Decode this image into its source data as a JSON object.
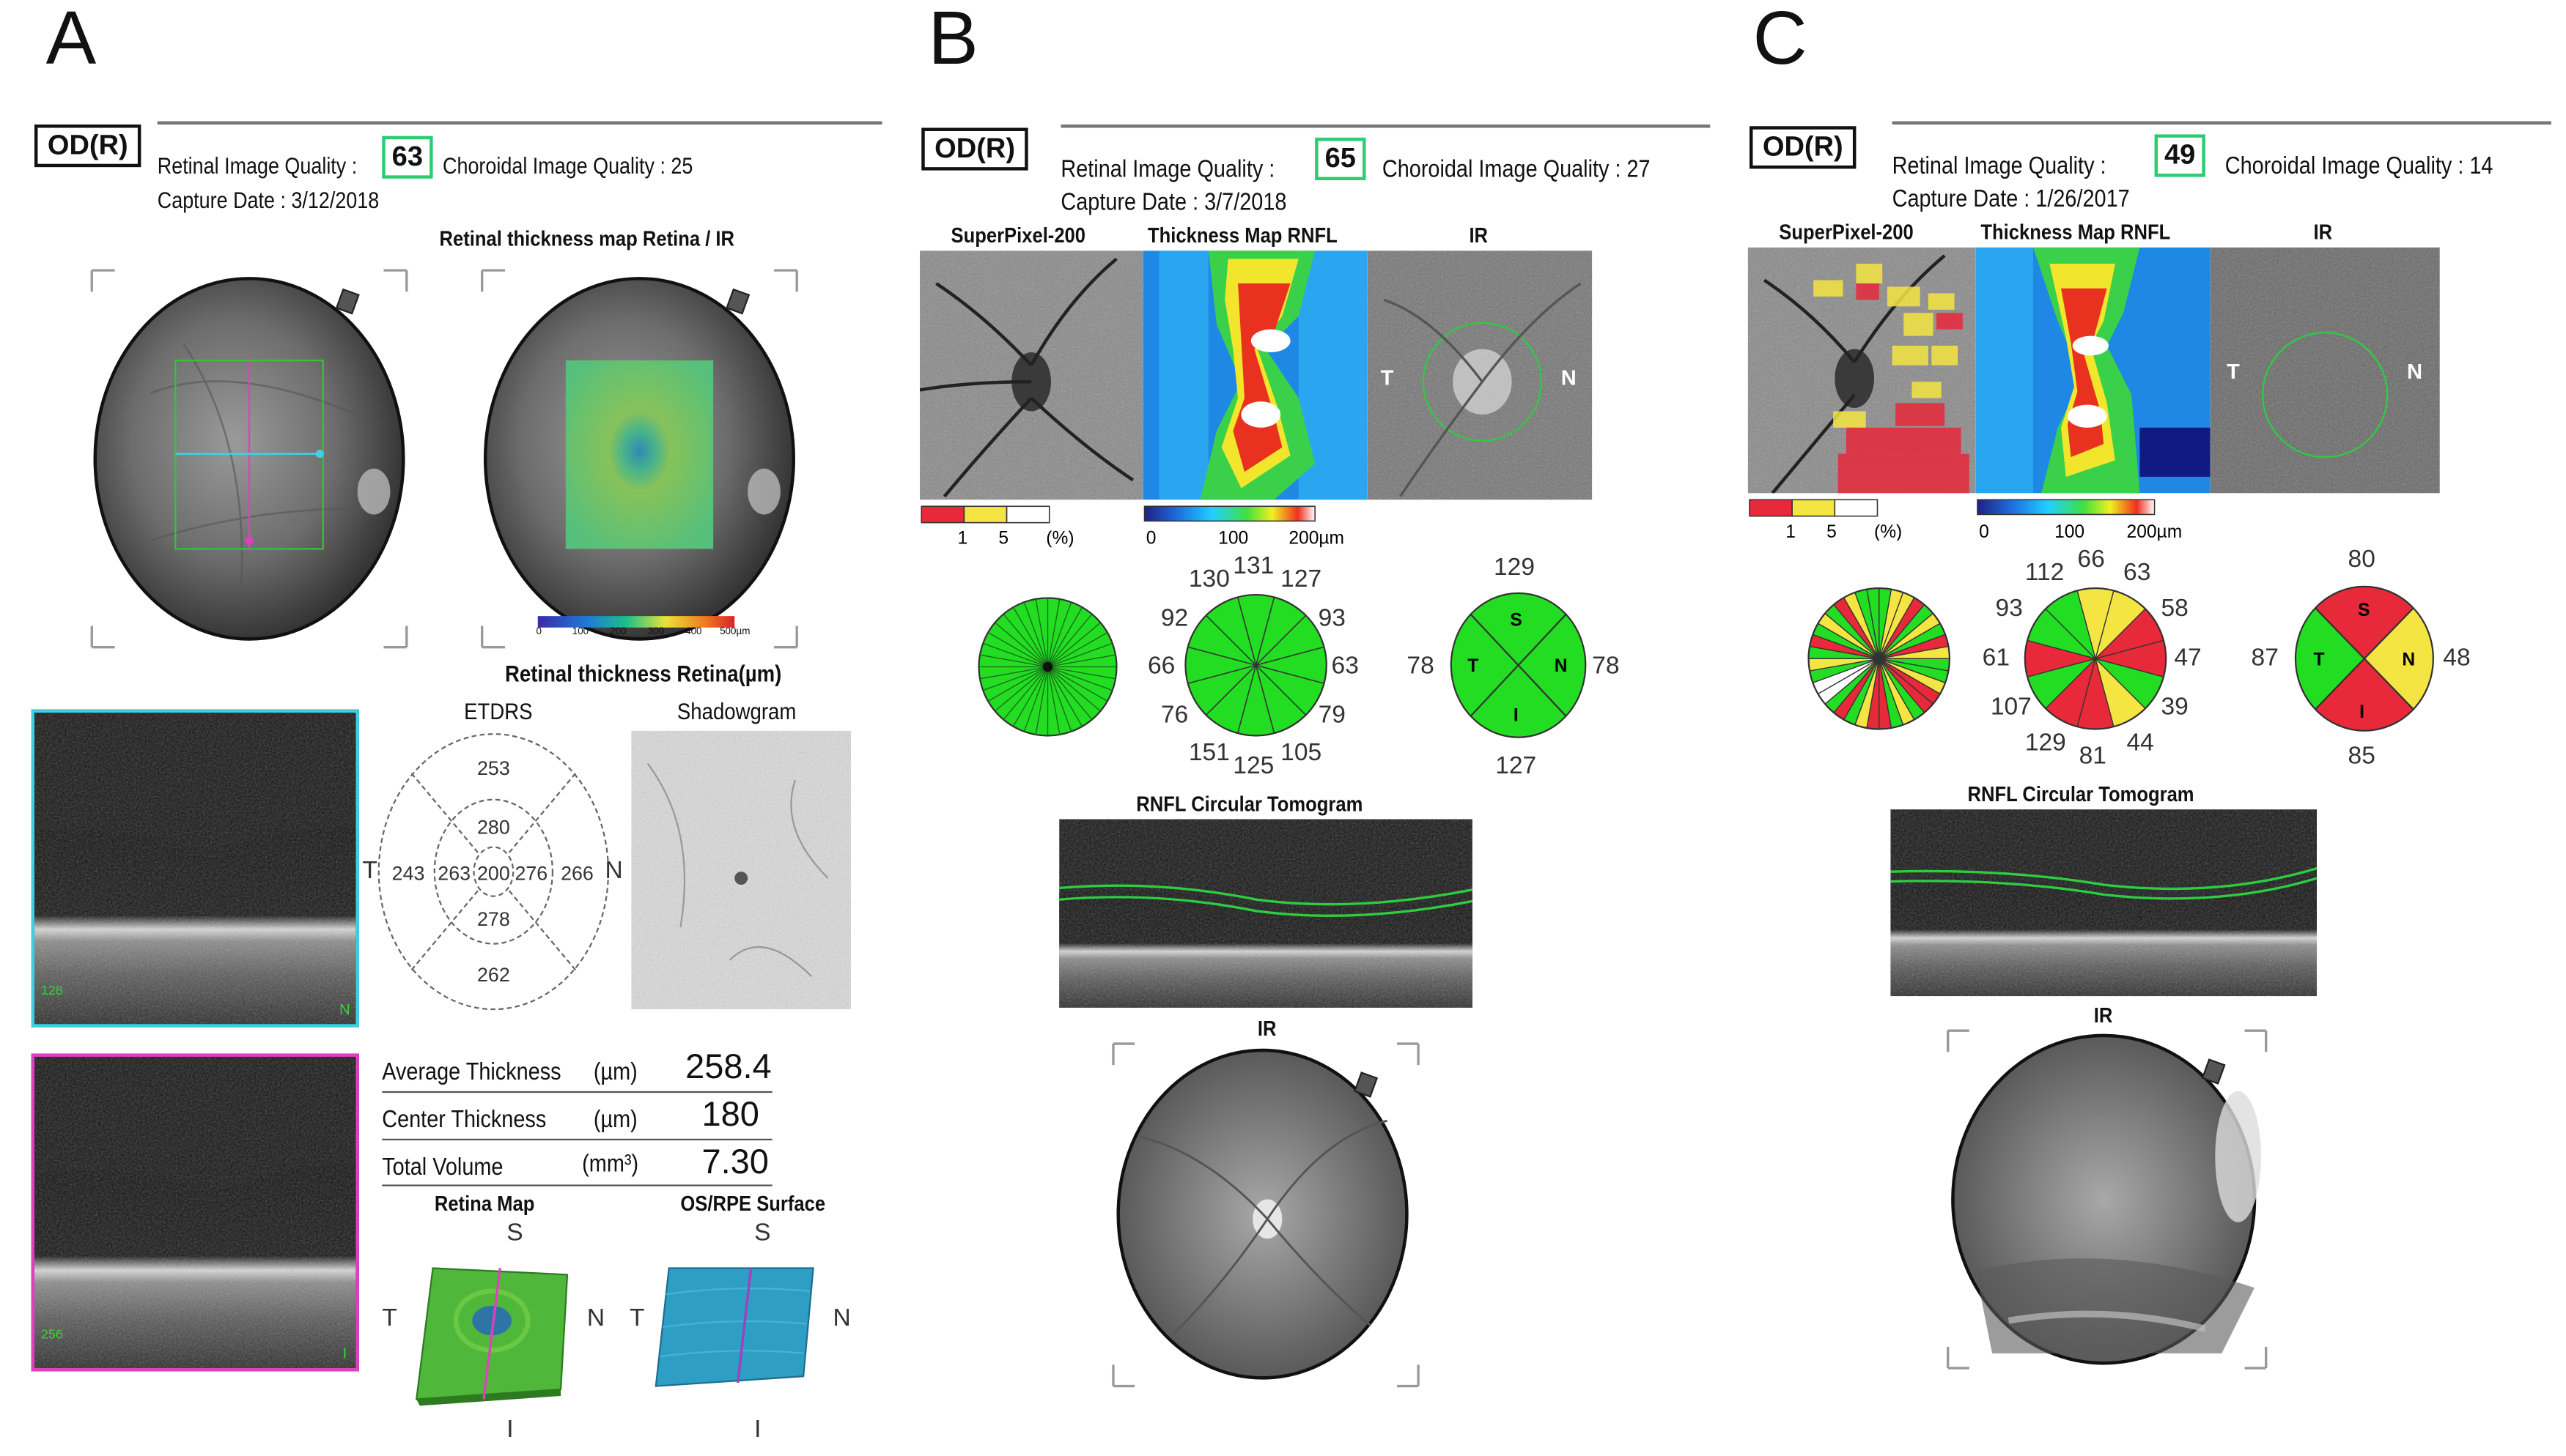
{
  "panel_a": {
    "letter": "A",
    "eye": "OD(R)",
    "retinal_quality_label": "Retinal Image Quality :",
    "retinal_quality": "63",
    "choroidal_quality": "Choroidal Image Quality : 25",
    "capture_date": "Capture Date : 3/12/2018",
    "thickness_map_title": "Retinal thickness map Retina / IR",
    "scale_ticks": [
      "0",
      "100",
      "200",
      "300",
      "400",
      "500µm"
    ],
    "retina_thickness_title": "Retinal thickness Retina(µm)",
    "etdrs_title": "ETDRS",
    "shadowgram_title": "Shadowgram",
    "etdrs": {
      "outer_top": "253",
      "inner_top": "280",
      "outer_left": "243",
      "inner_left": "263",
      "center": "200",
      "inner_right": "276",
      "outer_right": "266",
      "inner_bottom": "278",
      "outer_bottom": "262",
      "left_letter": "T",
      "right_letter": "N"
    },
    "scan1_label": "128",
    "scan1_n": "N",
    "scan2_label": "256",
    "scan2_i": "I",
    "avg_label": "Average Thickness",
    "avg_unit": "(µm)",
    "avg_value": "258.4",
    "center_label": "Center Thickness",
    "center_unit": "(µm)",
    "center_value": "180",
    "volume_label": "Total Volume",
    "volume_unit": "(mm³)",
    "volume_value": "7.30",
    "retina_map_title": "Retina Map",
    "osrpe_title": "OS/RPE Surface",
    "dir_s": "S",
    "dir_t": "T",
    "dir_n": "N",
    "dir_i": "I"
  },
  "panel_b": {
    "letter": "B",
    "eye": "OD(R)",
    "retinal_quality_label": "Retinal Image Quality :",
    "retinal_quality": "65",
    "choroidal_quality": "Choroidal Image Quality : 27",
    "capture_date": "Capture Date : 3/7/2018",
    "superpixel_title": "SuperPixel-200",
    "thickness_title": "Thickness Map RNFL",
    "ir_title": "IR",
    "legend_pct": [
      "1",
      "5",
      "(%)"
    ],
    "legend_scale": [
      "0",
      "100",
      "200µm"
    ],
    "ir_t": "T",
    "ir_n": "N",
    "clock": [
      "131",
      "127",
      "93",
      "63",
      "79",
      "105",
      "125",
      "151",
      "76",
      "66",
      "92",
      "130"
    ],
    "quadrant": {
      "top": "129",
      "right": "78",
      "bottom": "127",
      "left": "78",
      "s": "S",
      "n": "N",
      "i": "I",
      "t": "T"
    },
    "tomogram_title": "RNFL Circular Tomogram",
    "ir_bottom_title": "IR"
  },
  "panel_c": {
    "letter": "C",
    "eye": "OD(R)",
    "retinal_quality_label": "Retinal Image Quality :",
    "retinal_quality": "49",
    "choroidal_quality": "Choroidal Image Quality : 14",
    "capture_date": "Capture Date : 1/26/2017",
    "superpixel_title": "SuperPixel-200",
    "thickness_title": "Thickness Map RNFL",
    "ir_title": "IR",
    "legend_pct": [
      "1",
      "5",
      "(%)"
    ],
    "legend_scale": [
      "0",
      "100",
      "200µm"
    ],
    "ir_t": "T",
    "ir_n": "N",
    "clock": [
      "66",
      "63",
      "58",
      "47",
      "39",
      "44",
      "81",
      "129",
      "107",
      "61",
      "93",
      "112"
    ],
    "quadrant": {
      "top": "80",
      "right": "48",
      "bottom": "85",
      "left": "87",
      "s": "S",
      "n": "N",
      "i": "I",
      "t": "T"
    },
    "tomogram_title": "RNFL Circular Tomogram",
    "ir_bottom_title": "IR"
  },
  "colors": {
    "green": "#22dd22",
    "yellow": "#f4e542",
    "red": "#e8293a",
    "quality_box": "#2ecc71"
  }
}
